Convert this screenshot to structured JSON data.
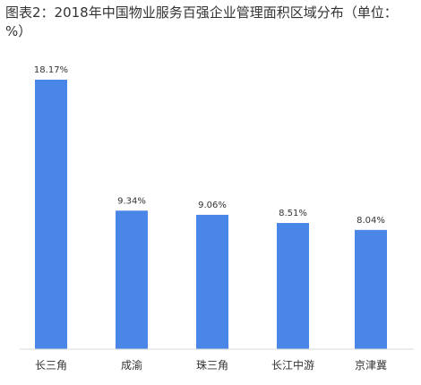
{
  "title": "图表2：2018年中国物业服务百强企业管理面积区域分布（单位：%）",
  "chart_data": {
    "type": "bar",
    "title": "图表2：2018年中国物业服务百强企业管理面积区域分布（单位：%）",
    "categories": [
      "长三角",
      "成渝",
      "珠三角",
      "长江中游",
      "京津冀"
    ],
    "values": [
      18.17,
      9.34,
      9.06,
      8.51,
      8.04
    ],
    "value_labels": [
      "18.17%",
      "9.34%",
      "9.06%",
      "8.51%",
      "8.04%"
    ],
    "bar_color": "#4a86e8",
    "xlabel": "",
    "ylabel": "",
    "ylim": [
      0,
      18.17
    ],
    "grid": false,
    "legend": "none"
  }
}
